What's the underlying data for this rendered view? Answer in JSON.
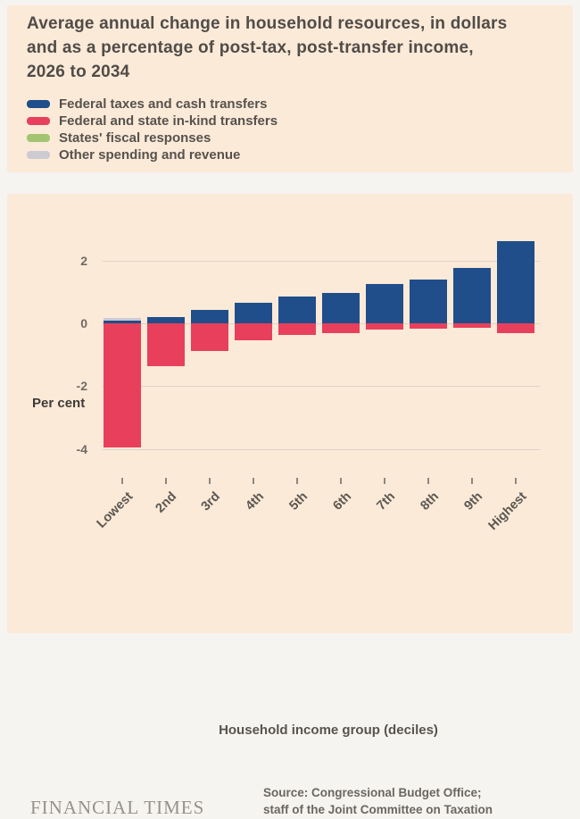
{
  "chart_data": {
    "type": "bar",
    "stacked": true,
    "title": "Average annual change in household resources, in dollars and as a percentage of post-tax, post-transfer income, 2026 to 2034",
    "unit_label": "Per cent",
    "xlabel": "Household income group (deciles)",
    "legend_position": "top",
    "grid": true,
    "categories": [
      "Lowest",
      "2nd",
      "3rd",
      "4th",
      "5th",
      "6th",
      "7th",
      "8th",
      "9th",
      "Highest"
    ],
    "series": [
      {
        "name": "Federal taxes and cash transfers",
        "color": "#204e8a",
        "values": [
          0.08,
          0.2,
          0.42,
          0.65,
          0.85,
          0.97,
          1.25,
          1.4,
          1.75,
          2.6
        ]
      },
      {
        "name": "Federal and state in-kind transfers",
        "color": "#e8405c",
        "values": [
          -3.95,
          -1.35,
          -0.87,
          -0.55,
          -0.38,
          -0.3,
          -0.2,
          -0.18,
          -0.15,
          -0.32
        ]
      },
      {
        "name": "States' fiscal responses",
        "color": "#a3c572",
        "values": [
          0,
          0,
          0,
          0,
          0,
          0,
          0,
          0,
          0,
          0
        ]
      },
      {
        "name": "Other spending and revenue",
        "color": "#cdcad2",
        "values": [
          0.08,
          0,
          0,
          0,
          0,
          0,
          0,
          0,
          0,
          0
        ]
      }
    ],
    "yticks": [
      {
        "value": 2,
        "label": "2"
      },
      {
        "value": 0,
        "label": "0"
      },
      {
        "value": -2,
        "label": "-2"
      },
      {
        "value": -4,
        "label": "-4"
      }
    ],
    "ylim": [
      -4.3,
      2.9
    ]
  },
  "footer": {
    "brand": "FINANCIAL TIMES",
    "source_line1": "Source: Congressional Budget Office;",
    "source_line2": "staff of the Joint Committee on Taxation"
  },
  "colors": {
    "card_background": "#fcead8",
    "page_background": "#f6f4f1",
    "gridline": "#dcd2c7"
  }
}
